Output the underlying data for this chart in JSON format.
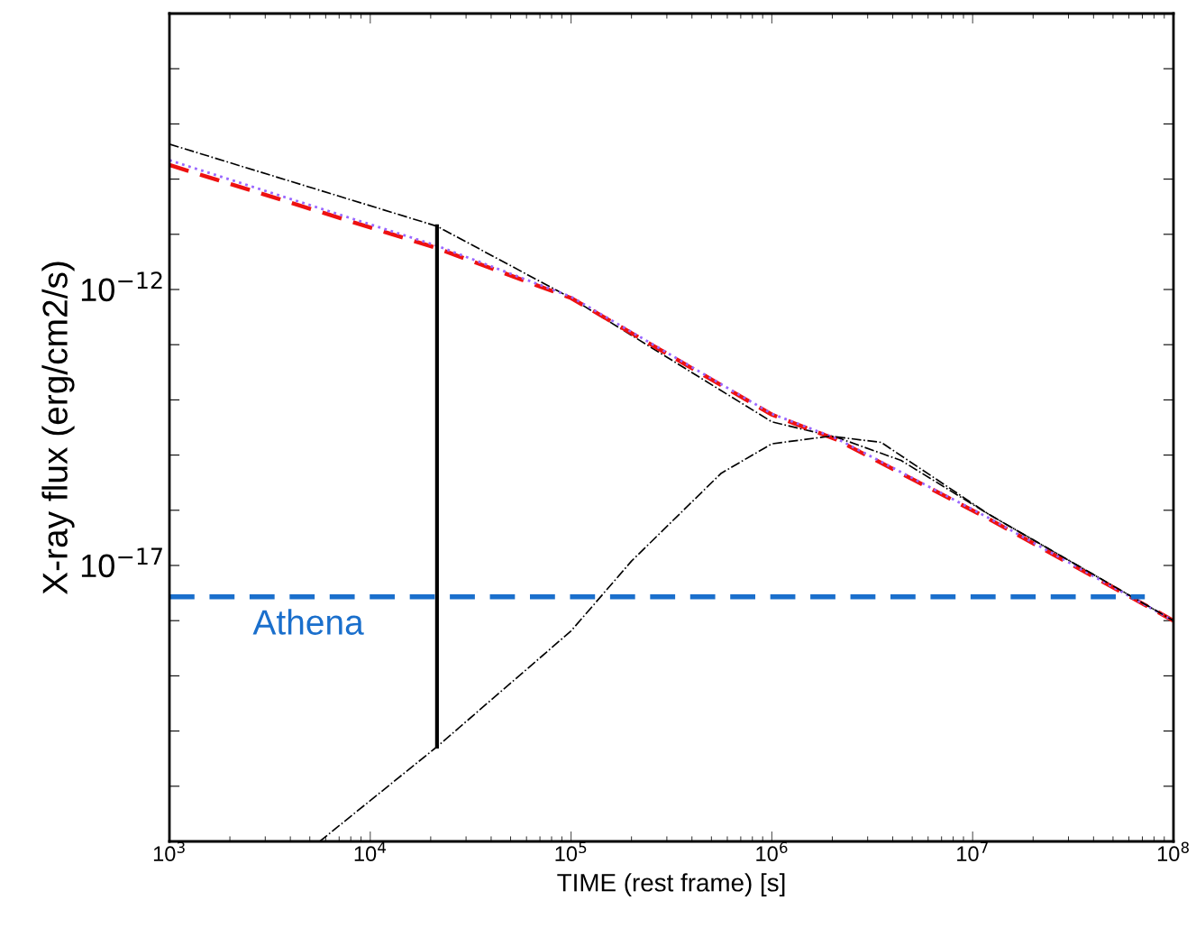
{
  "chart_data": {
    "type": "line",
    "xlabel": "TIME (rest frame) [s]",
    "ylabel": "X-ray flux (erg/cm2/s)",
    "log": "xy",
    "grid": false,
    "legend": false,
    "marker": "none",
    "xlim": [
      1000,
      100000000
    ],
    "ylim": [
      1e-22,
      1e-07
    ],
    "xticks": [
      {
        "value": 1000,
        "label": "10$^{3}$"
      },
      {
        "value": 10000,
        "label": "10$^{4}$"
      },
      {
        "value": 100000,
        "label": "10$^{5}$"
      },
      {
        "value": 1000000,
        "label": "10$^{6}$"
      },
      {
        "value": 10000000,
        "label": "10$^{7}$"
      },
      {
        "value": 100000000,
        "label": "10$^{8}$"
      }
    ],
    "yticks": [
      {
        "value": 1e-21,
        "label": null
      },
      {
        "value": 1e-20,
        "label": null
      },
      {
        "value": 1e-19,
        "label": null
      },
      {
        "value": 1e-18,
        "label": null
      },
      {
        "value": 1e-17,
        "label": "10$^{−17}$"
      },
      {
        "value": 1e-16,
        "label": null
      },
      {
        "value": 1e-15,
        "label": null
      },
      {
        "value": 1e-14,
        "label": null
      },
      {
        "value": 1e-13,
        "label": null
      },
      {
        "value": 1e-12,
        "label": "10$^{−12}$"
      },
      {
        "value": 1e-11,
        "label": null
      },
      {
        "value": 1e-10,
        "label": null
      },
      {
        "value": 1e-09,
        "label": null
      },
      {
        "value": 1e-08,
        "label": null
      }
    ],
    "series": [
      {
        "color": "#000000",
        "line_style": "dashdot",
        "x": [
          1000,
          21500,
          100000,
          1000000,
          2100000,
          4400000,
          12000000,
          35000000,
          100000000
        ],
        "values": [
          4.3e-10,
          1.4e-11,
          7e-13,
          4e-15,
          2.1e-15,
          8e-16,
          8.5e-17,
          9e-18,
          1e-18
        ]
      },
      {
        "color": "#ee1111",
        "line_style": "dashed",
        "x": [
          1000,
          21500,
          100000,
          1000000,
          2100000,
          12000000,
          100000000
        ],
        "values": [
          1.8e-10,
          5.6e-12,
          7e-13,
          5.4e-15,
          1.9e-15,
          7e-17,
          1e-18
        ]
      },
      {
        "color": "#9966ff",
        "line_style": "dotted",
        "x": [
          1000,
          21500,
          100000,
          1000000,
          2100000,
          12000000,
          100000000
        ],
        "values": [
          2.2e-10,
          6.2e-12,
          7.4e-13,
          5.6e-15,
          2e-15,
          7.3e-17,
          1e-18
        ]
      },
      {
        "color": "#000000",
        "line_style": "dashdot",
        "x": [
          5600,
          21500,
          100000,
          200000,
          560000,
          1000000,
          1950000,
          3500000,
          12000000,
          100000000
        ],
        "values": [
          1e-22,
          5.2e-21,
          6.5e-19,
          1.2e-17,
          4.7e-16,
          1.6e-15,
          2.2e-15,
          1.7e-15,
          8.5e-17,
          1e-18
        ]
      },
      {
        "color": "#000000",
        "line_style": "solid",
        "x": [
          21500,
          21500
        ],
        "values": [
          1.4e-11,
          5.2e-21
        ]
      },
      {
        "color": "#1a6fcc",
        "line_style": "dashed",
        "x": [
          1000,
          72000000
        ],
        "values": [
          2.7e-18,
          2.7e-18
        ]
      }
    ],
    "annotations": [
      "Athena"
    ]
  }
}
